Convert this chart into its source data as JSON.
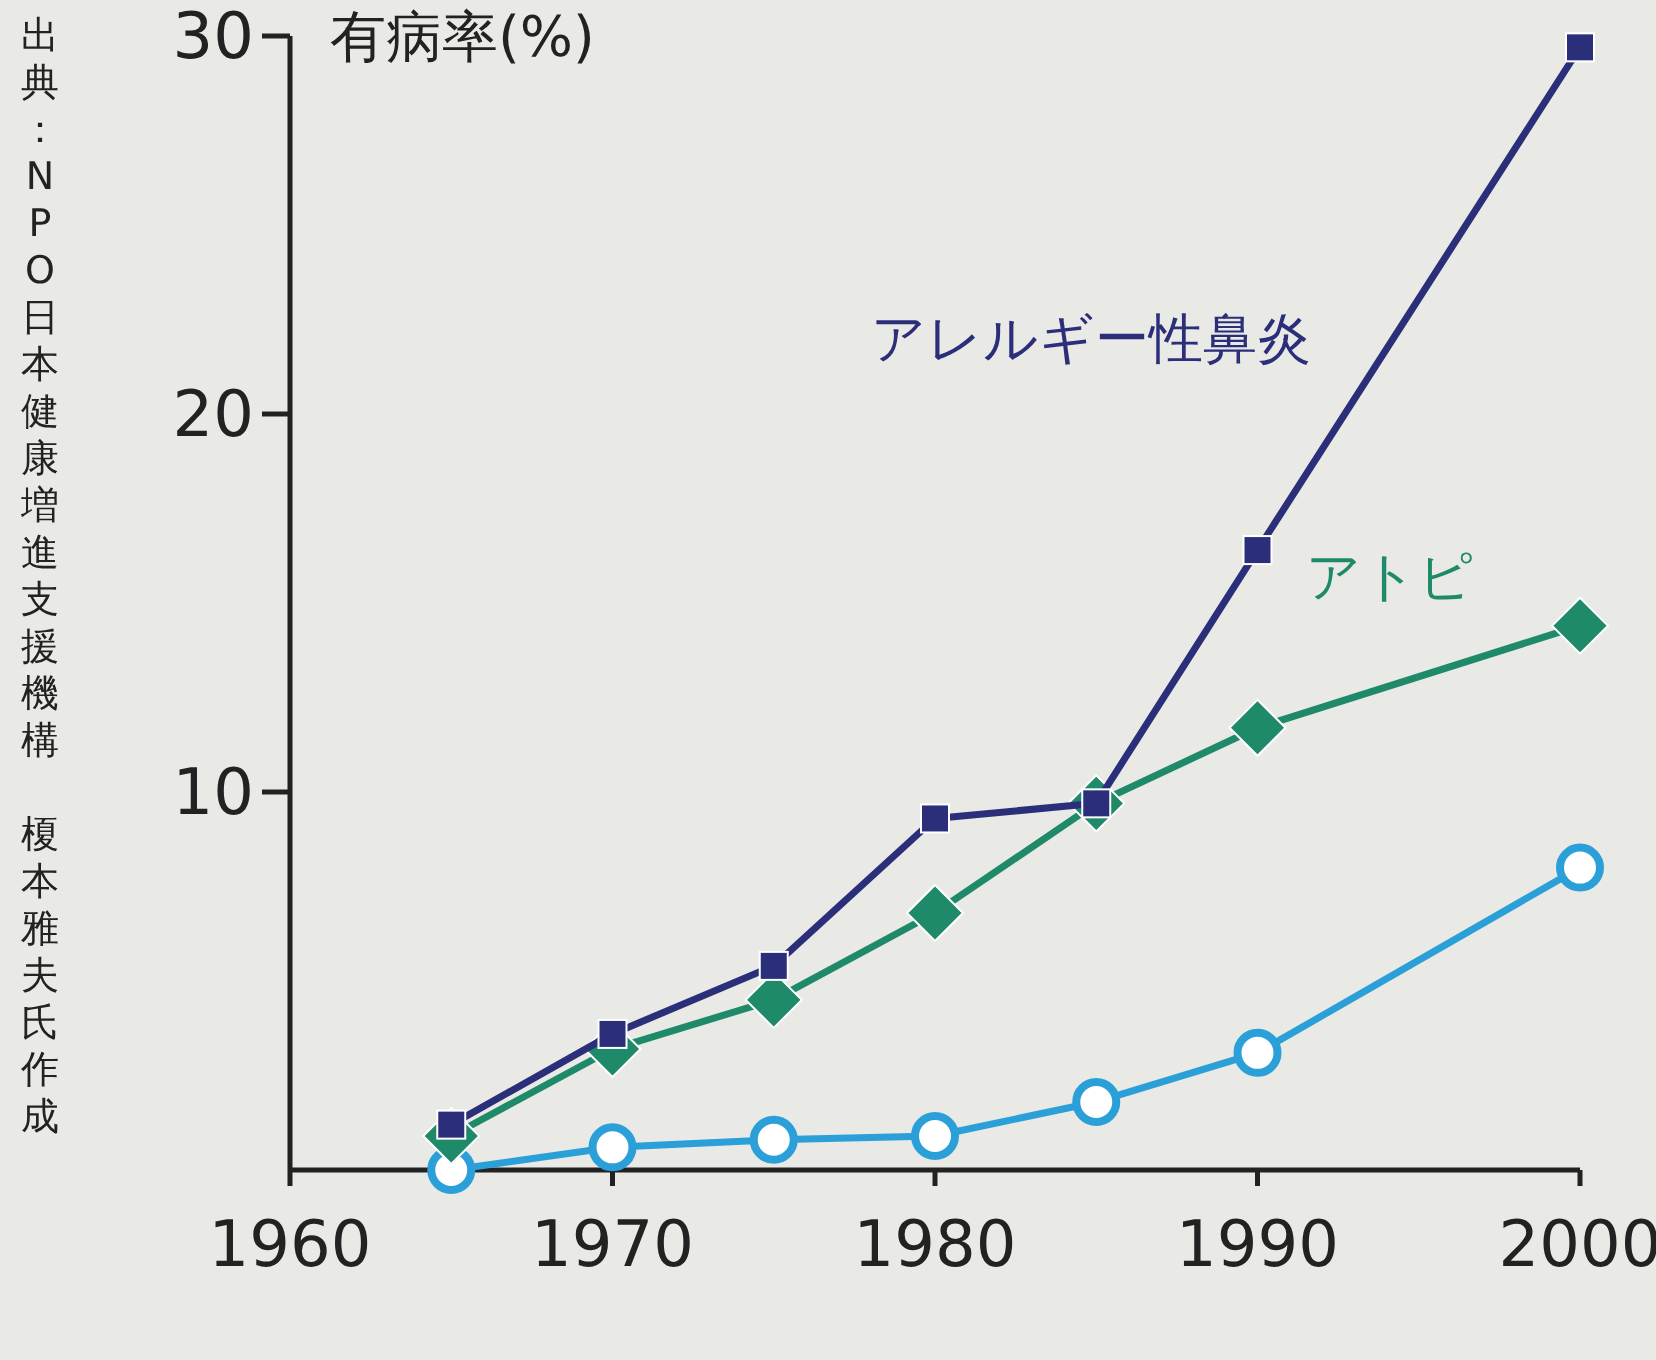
{
  "chart_data": {
    "type": "line",
    "ylabel": "有病率(%)",
    "annotations": [
      "出典：NPO日本健康増進支援機構",
      "榎本雅夫氏作成"
    ],
    "xlim": [
      1960,
      2000
    ],
    "xticks": [
      1960,
      1970,
      1980,
      1990,
      2000
    ],
    "ylim": [
      0,
      30
    ],
    "yticks": [
      10,
      20,
      30
    ],
    "grid": false,
    "series": [
      {
        "name": "アレルギー性鼻炎",
        "color": "#2b2f7a",
        "marker": "square",
        "x": [
          1965,
          1970,
          1975,
          1980,
          1985,
          1990,
          2000
        ],
        "values": [
          1.2,
          3.6,
          5.4,
          9.3,
          9.7,
          16.4,
          29.7
        ]
      },
      {
        "name": "アトピ",
        "color": "#1f8a6a",
        "marker": "diamond",
        "x": [
          1965,
          1970,
          1975,
          1980,
          1985,
          1990,
          2000
        ],
        "values": [
          0.9,
          3.2,
          4.5,
          6.8,
          9.7,
          11.7,
          14.4
        ]
      },
      {
        "color": "#2a9fd8",
        "marker": "circle",
        "x": [
          1965,
          1970,
          1975,
          1980,
          1985,
          1990,
          2000
        ],
        "values": [
          0.0,
          0.6,
          0.8,
          0.9,
          1.8,
          3.1,
          8.0
        ]
      }
    ]
  }
}
